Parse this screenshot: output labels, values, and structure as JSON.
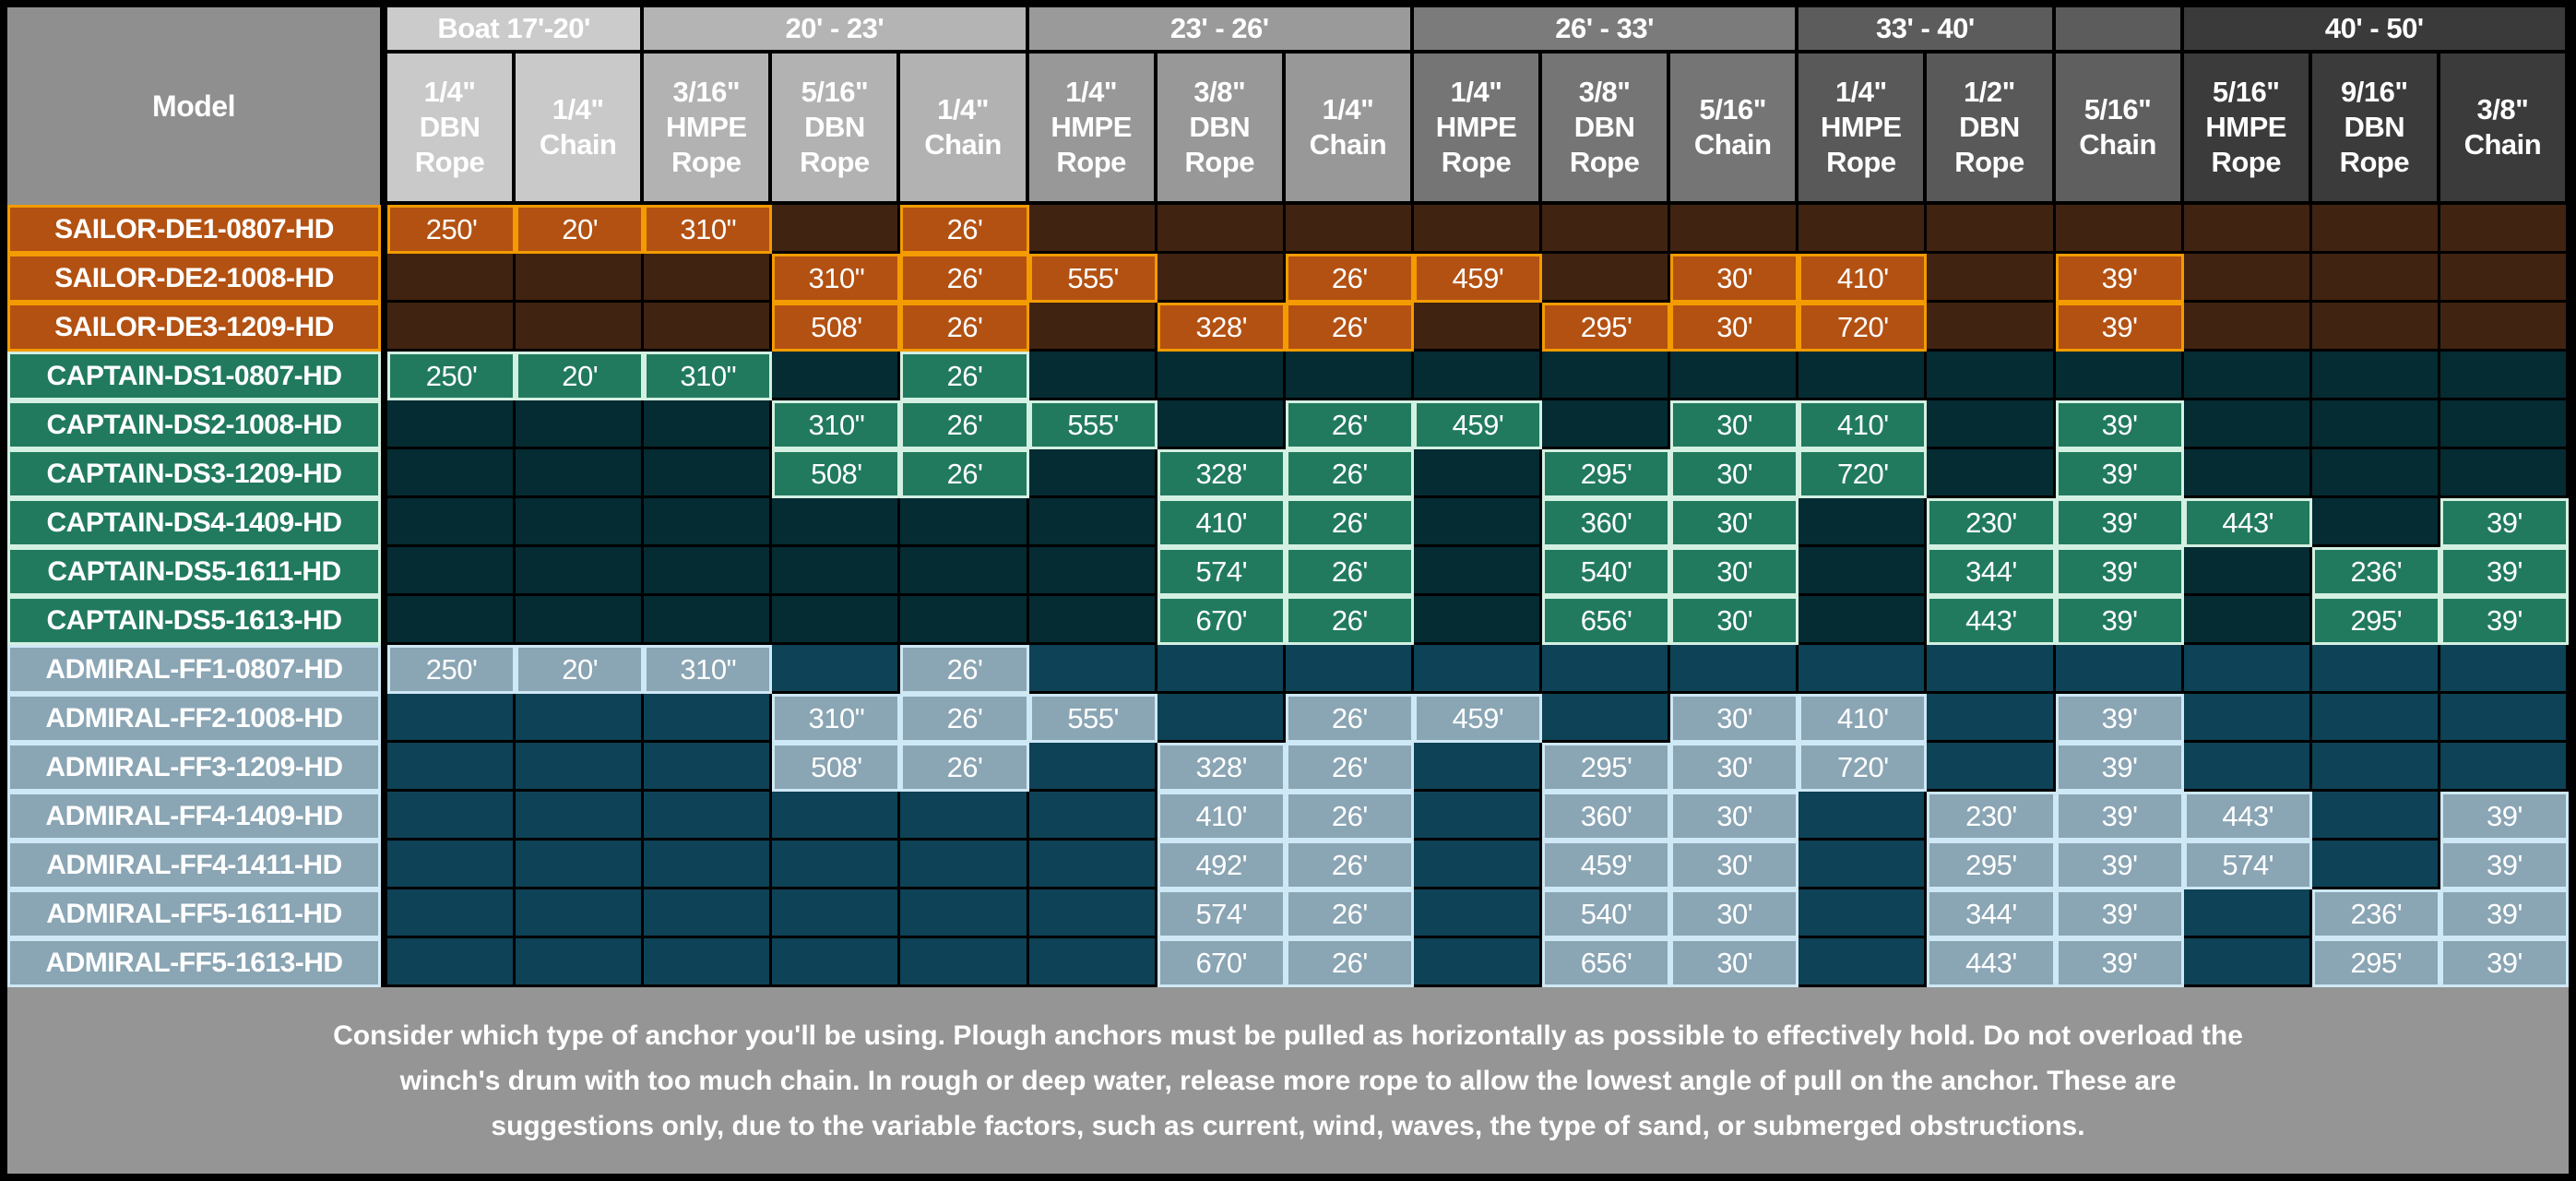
{
  "chart_data": {
    "type": "table",
    "model_header": "Model",
    "groups": [
      {
        "label": "Boat 17'-20'",
        "span": 2,
        "header_color": "#cbcbcb",
        "column_color": "#c9c9c9"
      },
      {
        "label": "20' - 23'",
        "span": 3,
        "header_color": "#b4b4b4",
        "column_color": "#b2b2b2"
      },
      {
        "label": "23' - 26'",
        "span": 3,
        "header_color": "#9a9a9a",
        "column_color": "#989898"
      },
      {
        "label": "26' - 33'",
        "span": 3,
        "header_color": "#7b7b7b",
        "column_color": "#757575"
      },
      {
        "label": "33' - 40'",
        "span": 2,
        "header_color": "#5c5c5c",
        "column_color": "#595959"
      },
      {
        "label": "",
        "span": 1,
        "header_color": "#5c5c5c",
        "column_color": "#5f5f5f"
      },
      {
        "label": "40' - 50'",
        "span": 3,
        "header_color": "#3a3a3a",
        "column_color": "#3b3b3b"
      }
    ],
    "columns": [
      "1/4\" DBN Rope",
      "1/4\" Chain",
      "3/16\" HMPE Rope",
      "5/16\" DBN Rope",
      "1/4\" Chain",
      "1/4\" HMPE Rope",
      "3/8\" DBN Rope",
      "1/4\" Chain",
      "1/4\" HMPE Rope",
      "3/8\" DBN Rope",
      "5/16\" Chain",
      "1/4\" HMPE Rope",
      "1/2\" DBN Rope",
      "5/16\" Chain",
      "5/16\" HMPE Rope",
      "9/16\" DBN Rope",
      "3/8\" Chain"
    ],
    "rows": [
      {
        "model": "SAILOR-DE1-0807-HD",
        "series": "sailor",
        "values": [
          "250'",
          "20'",
          "310\"",
          "",
          "26'",
          "",
          "",
          "",
          "",
          "",
          "",
          "",
          "",
          "",
          "",
          "",
          ""
        ]
      },
      {
        "model": "SAILOR-DE2-1008-HD",
        "series": "sailor",
        "values": [
          "",
          "",
          "",
          "310\"",
          "26'",
          "555'",
          "",
          "26'",
          "459'",
          "",
          "30'",
          "410'",
          "",
          "39'",
          "",
          "",
          ""
        ]
      },
      {
        "model": "SAILOR-DE3-1209-HD",
        "series": "sailor",
        "values": [
          "",
          "",
          "",
          "508'",
          "26'",
          "",
          "328'",
          "26'",
          "",
          "295'",
          "30'",
          "720'",
          "",
          "39'",
          "",
          "",
          ""
        ]
      },
      {
        "model": "CAPTAIN-DS1-0807-HD",
        "series": "captain",
        "values": [
          "250'",
          "20'",
          "310\"",
          "",
          "26'",
          "",
          "",
          "",
          "",
          "",
          "",
          "",
          "",
          "",
          "",
          "",
          ""
        ]
      },
      {
        "model": "CAPTAIN-DS2-1008-HD",
        "series": "captain",
        "values": [
          "",
          "",
          "",
          "310\"",
          "26'",
          "555'",
          "",
          "26'",
          "459'",
          "",
          "30'",
          "410'",
          "",
          "39'",
          "",
          "",
          ""
        ]
      },
      {
        "model": "CAPTAIN-DS3-1209-HD",
        "series": "captain",
        "values": [
          "",
          "",
          "",
          "508'",
          "26'",
          "",
          "328'",
          "26'",
          "",
          "295'",
          "30'",
          "720'",
          "",
          "39'",
          "",
          "",
          ""
        ]
      },
      {
        "model": "CAPTAIN-DS4-1409-HD",
        "series": "captain",
        "values": [
          "",
          "",
          "",
          "",
          "",
          "",
          "410'",
          "26'",
          "",
          "360'",
          "30'",
          "",
          "230'",
          "39'",
          "443'",
          "",
          "39'"
        ]
      },
      {
        "model": "CAPTAIN-DS5-1611-HD",
        "series": "captain",
        "values": [
          "",
          "",
          "",
          "",
          "",
          "",
          "574'",
          "26'",
          "",
          "540'",
          "30'",
          "",
          "344'",
          "39'",
          "",
          "236'",
          "39'"
        ]
      },
      {
        "model": "CAPTAIN-DS5-1613-HD",
        "series": "captain",
        "values": [
          "",
          "",
          "",
          "",
          "",
          "",
          "670'",
          "26'",
          "",
          "656'",
          "30'",
          "",
          "443'",
          "39'",
          "",
          "295'",
          "39'"
        ]
      },
      {
        "model": "ADMIRAL-FF1-0807-HD",
        "series": "admiral",
        "values": [
          "250'",
          "20'",
          "310\"",
          "",
          "26'",
          "",
          "",
          "",
          "",
          "",
          "",
          "",
          "",
          "",
          "",
          "",
          ""
        ]
      },
      {
        "model": "ADMIRAL-FF2-1008-HD",
        "series": "admiral",
        "values": [
          "",
          "",
          "",
          "310\"",
          "26'",
          "555'",
          "",
          "26'",
          "459'",
          "",
          "30'",
          "410'",
          "",
          "39'",
          "",
          "",
          ""
        ]
      },
      {
        "model": "ADMIRAL-FF3-1209-HD",
        "series": "admiral",
        "values": [
          "",
          "",
          "",
          "508'",
          "26'",
          "",
          "328'",
          "26'",
          "",
          "295'",
          "30'",
          "720'",
          "",
          "39'",
          "",
          "",
          ""
        ]
      },
      {
        "model": "ADMIRAL-FF4-1409-HD",
        "series": "admiral",
        "values": [
          "",
          "",
          "",
          "",
          "",
          "",
          "410'",
          "26'",
          "",
          "360'",
          "30'",
          "",
          "230'",
          "39'",
          "443'",
          "",
          "39'"
        ]
      },
      {
        "model": "ADMIRAL-FF4-1411-HD",
        "series": "admiral",
        "values": [
          "",
          "",
          "",
          "",
          "",
          "",
          "492'",
          "26'",
          "",
          "459'",
          "30'",
          "",
          "295'",
          "39'",
          "574'",
          "",
          "39'"
        ]
      },
      {
        "model": "ADMIRAL-FF5-1611-HD",
        "series": "admiral",
        "values": [
          "",
          "",
          "",
          "",
          "",
          "",
          "574'",
          "26'",
          "",
          "540'",
          "30'",
          "",
          "344'",
          "39'",
          "",
          "236'",
          "39'"
        ]
      },
      {
        "model": "ADMIRAL-FF5-1613-HD",
        "series": "admiral",
        "values": [
          "",
          "",
          "",
          "",
          "",
          "",
          "670'",
          "26'",
          "",
          "656'",
          "30'",
          "",
          "443'",
          "39'",
          "",
          "295'",
          "39'"
        ]
      }
    ],
    "footer_note": "Consider which type of anchor you'll be using. Plough anchors must be pulled as horizontally as possible to effectively hold. Do not overload the winch's drum with too much chain. In rough or deep water, release more rope to allow the lowest angle of pull on the anchor. These are suggestions only, due to the variable factors, such as current, wind, waves, the type of sand, or submerged obstructions."
  },
  "colors": {
    "background": "#000000",
    "model_header": "#8f8f8f",
    "footer_background": "#959595",
    "header_text": "#ffffff",
    "series": {
      "sailor": {
        "cell": "#b35112",
        "empty": "#402310",
        "outline": "#f39b00"
      },
      "captain": {
        "cell": "#217a5e",
        "empty": "#052b33",
        "outline": "#d4f0e2"
      },
      "admiral": {
        "cell": "#8aa5b4",
        "empty": "#0e4256",
        "outline": "#cfe8f6"
      }
    }
  }
}
